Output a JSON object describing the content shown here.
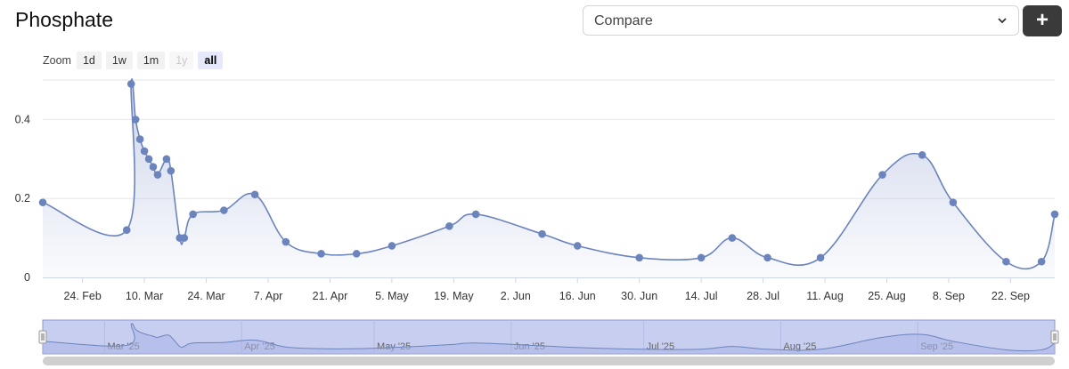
{
  "title": "Phosphate",
  "compare": {
    "label": "Compare"
  },
  "add_button": {
    "label": "+"
  },
  "zoom": {
    "label": "Zoom",
    "buttons": [
      {
        "label": "1d",
        "state": "normal"
      },
      {
        "label": "1w",
        "state": "normal"
      },
      {
        "label": "1m",
        "state": "normal"
      },
      {
        "label": "1y",
        "state": "disabled"
      },
      {
        "label": "all",
        "state": "active"
      }
    ]
  },
  "colors": {
    "line": "#6b84bd",
    "area_top": "#c4cde6",
    "navigator_fill": "#c8ceef",
    "navigator_border": "#8c96d6"
  },
  "chart_data": {
    "type": "area",
    "title": "Phosphate",
    "x_unit": "date",
    "x": [
      "2025-02-15",
      "2025-03-06",
      "2025-03-07",
      "2025-03-08",
      "2025-03-09",
      "2025-03-10",
      "2025-03-11",
      "2025-03-12",
      "2025-03-13",
      "2025-03-15",
      "2025-03-16",
      "2025-03-18",
      "2025-03-19",
      "2025-03-21",
      "2025-03-28",
      "2025-04-04",
      "2025-04-11",
      "2025-04-19",
      "2025-04-27",
      "2025-05-05",
      "2025-05-18",
      "2025-05-24",
      "2025-06-08",
      "2025-06-16",
      "2025-06-30",
      "2025-07-14",
      "2025-07-21",
      "2025-07-29",
      "2025-08-10",
      "2025-08-24",
      "2025-09-02",
      "2025-09-09",
      "2025-09-21",
      "2025-09-29",
      "2025-10-02"
    ],
    "series": [
      {
        "values": [
          0.19,
          0.12,
          0.49,
          0.4,
          0.35,
          0.32,
          0.3,
          0.28,
          0.26,
          0.3,
          0.27,
          0.1,
          0.1,
          0.16,
          0.17,
          0.21,
          0.09,
          0.06,
          0.06,
          0.08,
          0.13,
          0.16,
          0.11,
          0.08,
          0.05,
          0.05,
          0.1,
          0.05,
          0.05,
          0.26,
          0.31,
          0.19,
          0.04,
          0.04,
          0.16
        ]
      }
    ],
    "ylim": [
      0,
      0.5
    ],
    "yticks": [
      0,
      0.2,
      0.4
    ],
    "ytick_labels": [
      "0",
      "0.2",
      "0.4"
    ],
    "xticks": [
      "2025-02-24",
      "2025-03-10",
      "2025-03-24",
      "2025-04-07",
      "2025-04-21",
      "2025-05-05",
      "2025-05-19",
      "2025-06-02",
      "2025-06-16",
      "2025-06-30",
      "2025-07-14",
      "2025-07-28",
      "2025-08-11",
      "2025-08-25",
      "2025-09-08",
      "2025-09-22"
    ],
    "xtick_labels": [
      "24. Feb",
      "10. Mar",
      "24. Mar",
      "7. Apr",
      "21. Apr",
      "5. May",
      "19. May",
      "2. Jun",
      "16. Jun",
      "30. Jun",
      "14. Jul",
      "28. Jul",
      "11. Aug",
      "25. Aug",
      "8. Sep",
      "22. Sep"
    ],
    "grid": true,
    "navigator": {
      "xticks": [
        "2025-03-01",
        "2025-04-01",
        "2025-05-01",
        "2025-06-01",
        "2025-07-01",
        "2025-08-01",
        "2025-09-01"
      ],
      "labels": [
        "Mar '25",
        "Apr '25",
        "May '25",
        "Jun '25",
        "Jul '25",
        "Aug '25",
        "Sep '25"
      ]
    }
  }
}
